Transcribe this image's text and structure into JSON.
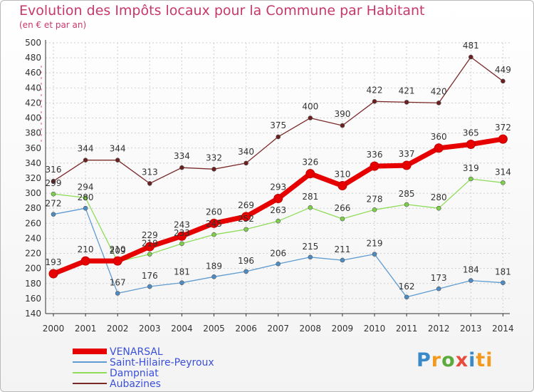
{
  "header": {
    "title": "Evolution des Impôts locaux pour la Commune par Habitant",
    "subtitle": "(en € et par an)"
  },
  "logo": {
    "text": "Proxiti",
    "letters": [
      "P",
      "r",
      "o",
      "x",
      "i",
      "ti"
    ]
  },
  "chart_data": {
    "type": "line",
    "title": "Evolution des Impôts locaux pour la Commune par Habitant",
    "subtitle": "(en € et par an)",
    "xlabel": "",
    "ylabel": "",
    "x": [
      "2000",
      "2001",
      "2002",
      "2003",
      "2004",
      "2005",
      "2006",
      "2007",
      "2008",
      "2009",
      "2010",
      "2011",
      "2012",
      "2013",
      "2014"
    ],
    "ylim": [
      140,
      500
    ],
    "yticks": [
      140,
      160,
      180,
      200,
      220,
      240,
      260,
      280,
      300,
      320,
      340,
      360,
      380,
      400,
      420,
      440,
      460,
      480,
      500
    ],
    "grid": true,
    "legend_position": "bottom-left",
    "series": [
      {
        "name": "VENARSAL",
        "color": "#e60000",
        "values": [
          193,
          210,
          210,
          229,
          243,
          260,
          269,
          293,
          326,
          310,
          336,
          337,
          360,
          365,
          372
        ]
      },
      {
        "name": "Saint-Hilaire-Peyroux",
        "color": "#5e9bd0",
        "values": [
          272,
          280,
          167,
          176,
          181,
          189,
          196,
          206,
          215,
          211,
          219,
          162,
          173,
          184,
          181
        ]
      },
      {
        "name": "Dampniat",
        "color": "#8fdc5a",
        "values": [
          299,
          294,
          209,
          219,
          233,
          245,
          252,
          263,
          281,
          266,
          278,
          285,
          280,
          319,
          314
        ]
      },
      {
        "name": "Aubazines",
        "color": "#7b2a2a",
        "values": [
          316,
          344,
          344,
          313,
          334,
          332,
          340,
          375,
          400,
          390,
          422,
          421,
          420,
          481,
          449
        ]
      }
    ]
  }
}
